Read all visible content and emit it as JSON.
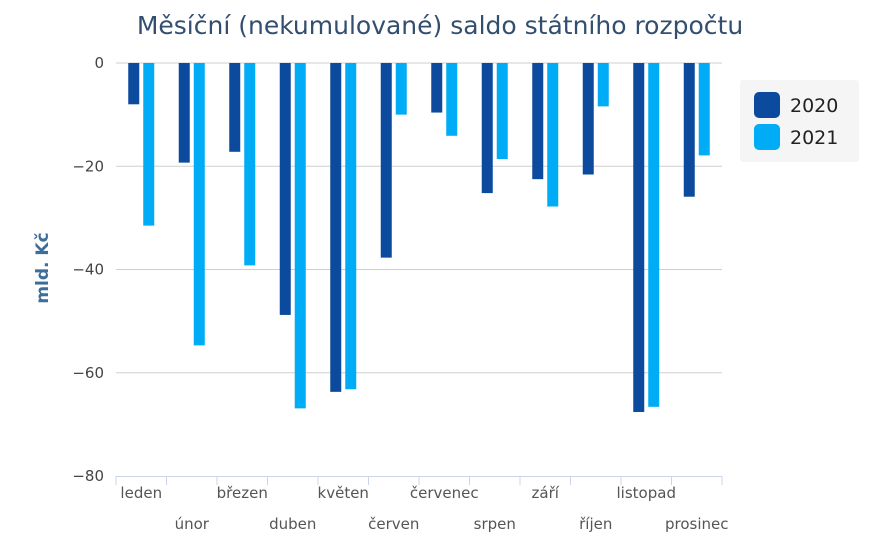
{
  "chart_data": {
    "type": "bar",
    "title": "Měsíční (nekumulované) saldo státního rozpočtu",
    "xlabel": "",
    "ylabel": "mld. Kč",
    "ylim": [
      -80,
      0
    ],
    "yticks": [
      "0",
      "−20",
      "−40",
      "−60",
      "−80"
    ],
    "categories": [
      "leden",
      "únor",
      "březen",
      "duben",
      "květen",
      "červen",
      "červenec",
      "srpen",
      "září",
      "říjen",
      "listopad",
      "prosinec"
    ],
    "series": [
      {
        "name": "2020",
        "color": "#0b4a9c",
        "values": [
          -8,
          -19.3,
          -17.2,
          -48.8,
          -63.7,
          -37.7,
          -9.6,
          -25.2,
          -22.5,
          -21.6,
          -67.6,
          -25.9
        ]
      },
      {
        "name": "2021",
        "color": "#00acf5",
        "values": [
          -31.5,
          -54.7,
          -39.2,
          -66.9,
          -63.2,
          -10,
          -14.1,
          -18.6,
          -27.8,
          -8.4,
          -66.6,
          -17.9
        ]
      }
    ],
    "grid": true,
    "legend": "top-right"
  }
}
